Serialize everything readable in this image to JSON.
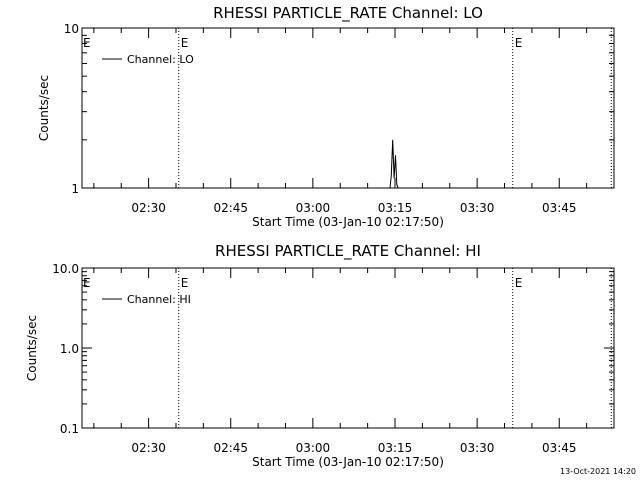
{
  "chart_data": [
    {
      "type": "line",
      "title": "RHESSI PARTICLE_RATE Channel: LO",
      "xlabel": "Start Time (03-Jan-10 02:17:50)",
      "ylabel": "Counts/sec",
      "yscale": "log",
      "ylim": [
        1,
        10
      ],
      "ytick_labels": [
        "1",
        "10"
      ],
      "xlim": [
        "02:17:50",
        "03:55:00"
      ],
      "xtick_labels": [
        "02:30",
        "02:45",
        "03:00",
        "03:15",
        "03:30",
        "03:45"
      ],
      "legend": {
        "entries": [
          "Channel: LO"
        ],
        "position": "top-left"
      },
      "markers": [
        {
          "time": "02:35:30",
          "label": "E"
        },
        {
          "time": "03:36:30",
          "label": "E"
        },
        {
          "time": "03:54:30",
          "label": ""
        }
      ],
      "series": [
        {
          "name": "Channel: LO",
          "x": [
            "03:14:05",
            "03:14:20",
            "03:14:35",
            "03:14:50",
            "03:15:05",
            "03:15:20",
            "03:15:35"
          ],
          "y": [
            1,
            1.2,
            2.0,
            1.15,
            1.6,
            1.05,
            1
          ]
        }
      ]
    },
    {
      "type": "line",
      "title": "RHESSI PARTICLE_RATE Channel: HI",
      "xlabel": "Start Time (03-Jan-10 02:17:50)",
      "ylabel": "Counts/sec",
      "yscale": "log",
      "ylim": [
        0.1,
        10
      ],
      "ytick_labels": [
        "0.1",
        "1.0",
        "10.0"
      ],
      "xlim": [
        "02:17:50",
        "03:55:00"
      ],
      "xtick_labels": [
        "02:30",
        "02:45",
        "03:00",
        "03:15",
        "03:30",
        "03:45"
      ],
      "legend": {
        "entries": [
          "Channel: HI"
        ],
        "position": "top-left"
      },
      "markers": [
        {
          "time": "02:35:30",
          "label": "E"
        },
        {
          "time": "03:36:30",
          "label": "E"
        },
        {
          "time": "03:54:30",
          "label": ""
        }
      ],
      "series": [
        {
          "name": "Channel: HI",
          "x": [],
          "y": []
        }
      ]
    }
  ],
  "footer": {
    "timestamp": "13-Oct-2021 14:20"
  }
}
